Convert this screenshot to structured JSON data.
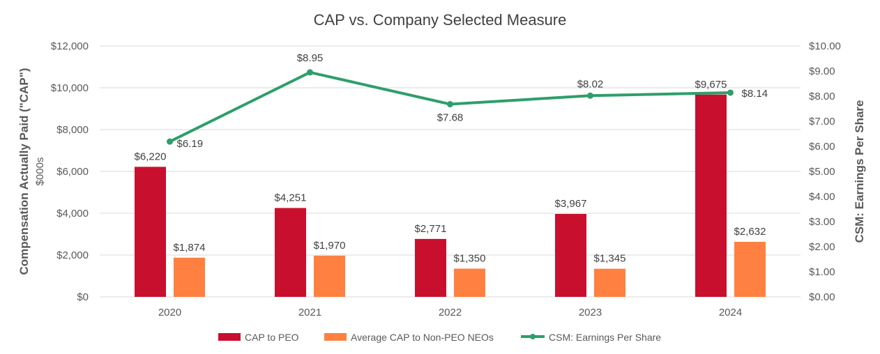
{
  "chart_data": {
    "type": "bar+line",
    "title": "CAP vs. Company Selected Measure",
    "ylabel": "Compensation Actually Paid (\"CAP\")",
    "ylabel_sub": "$000s",
    "y2label": "CSM: Earnings Per Share",
    "categories": [
      "2020",
      "2021",
      "2022",
      "2023",
      "2024"
    ],
    "ylim": [
      0,
      12000
    ],
    "y_ticks": [
      "$0",
      "$2,000",
      "$4,000",
      "$6,000",
      "$8,000",
      "$10,000",
      "$12,000"
    ],
    "y2lim": [
      0,
      10
    ],
    "y2_ticks": [
      "$0.00",
      "$1.00",
      "$2.00",
      "$3.00",
      "$4.00",
      "$5.00",
      "$6.00",
      "$7.00",
      "$8.00",
      "$9.00",
      "$10.00"
    ],
    "grid": true,
    "legend_position": "bottom",
    "series": [
      {
        "name": "CAP to PEO",
        "type": "bar",
        "axis": "left",
        "color": "#C8102E",
        "values": [
          6220,
          4251,
          2771,
          3967,
          9675
        ],
        "labels": [
          "$6,220",
          "$4,251",
          "$2,771",
          "$3,967",
          "$9,675"
        ]
      },
      {
        "name": "Average CAP to Non-PEO NEOs",
        "type": "bar",
        "axis": "left",
        "color": "#FF8040",
        "values": [
          1874,
          1970,
          1350,
          1345,
          2632
        ],
        "labels": [
          "$1,874",
          "$1,970",
          "$1,350",
          "$1,345",
          "$2,632"
        ]
      },
      {
        "name": "CSM: Earnings Per Share",
        "type": "line",
        "axis": "right",
        "color": "#2E9E6B",
        "values": [
          6.19,
          8.95,
          7.68,
          8.02,
          8.14
        ],
        "labels": [
          "$6.19",
          "$8.95",
          "$7.68",
          "$8.02",
          "$8.14"
        ]
      }
    ]
  }
}
